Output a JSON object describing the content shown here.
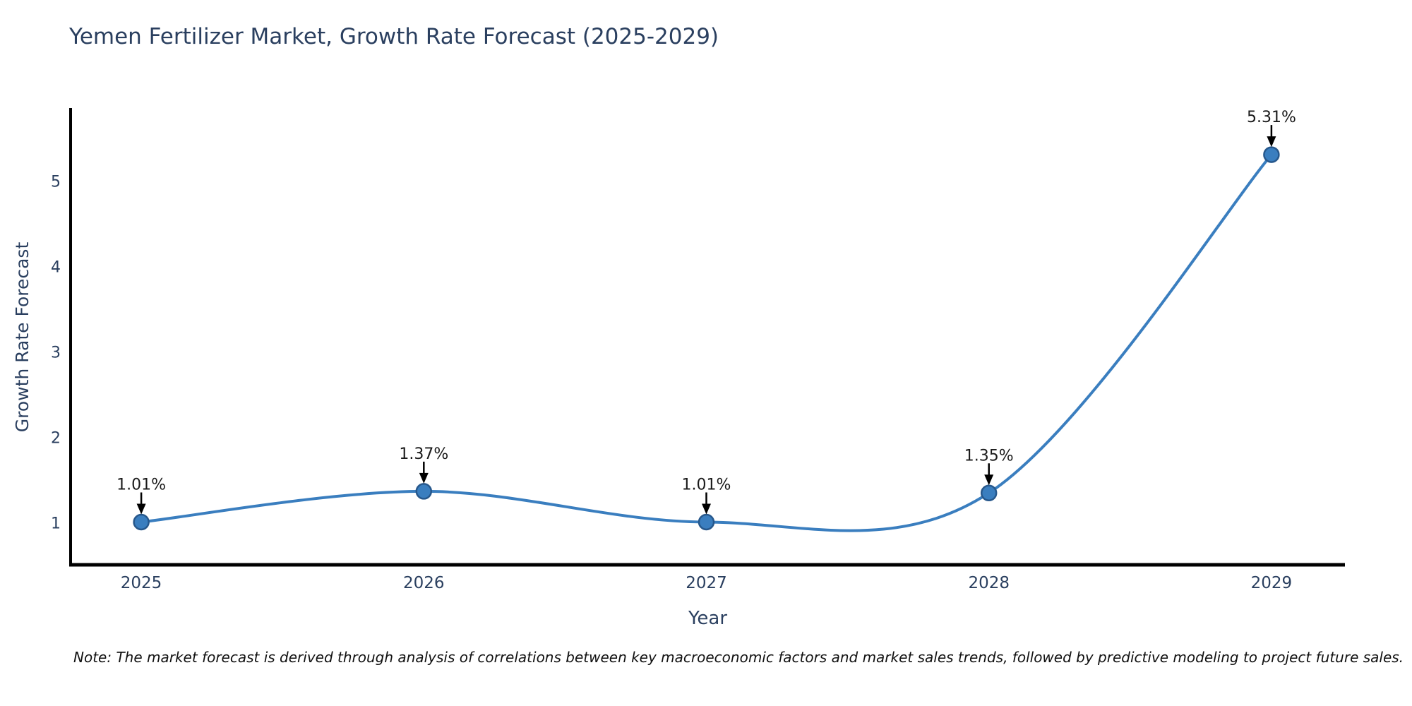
{
  "note": "Note: The market forecast is derived through analysis of correlations between key macroeconomic factors and market sales trends, followed by predictive modeling to project future sales.",
  "chart_data": {
    "type": "line",
    "title": "Yemen Fertilizer Market, Growth Rate Forecast (2025-2029)",
    "xlabel": "Year",
    "ylabel": "Growth Rate Forecast",
    "x": [
      2025,
      2026,
      2027,
      2028,
      2029
    ],
    "categories": [
      "2025",
      "2026",
      "2027",
      "2028",
      "2029"
    ],
    "values": [
      1.01,
      1.37,
      1.01,
      1.35,
      5.31
    ],
    "point_labels": [
      "1.01%",
      "1.37%",
      "1.01%",
      "1.35%",
      "5.31%"
    ],
    "yticks": [
      1,
      2,
      3,
      4,
      5
    ],
    "xlim": [
      2024.75,
      2029.26
    ],
    "ylim": [
      0.51,
      5.84
    ],
    "grid": false,
    "legend": "none",
    "line_shape": "spline"
  },
  "colors": {
    "line": "#3a7ebf",
    "marker_fill": "#3a7ebf",
    "marker_edge": "#27588c",
    "axis_text": "#2a3f5f",
    "annotation_text": "#1a1a1a",
    "spine": "#000000",
    "arrow": "#000000",
    "background": "#ffffff"
  }
}
